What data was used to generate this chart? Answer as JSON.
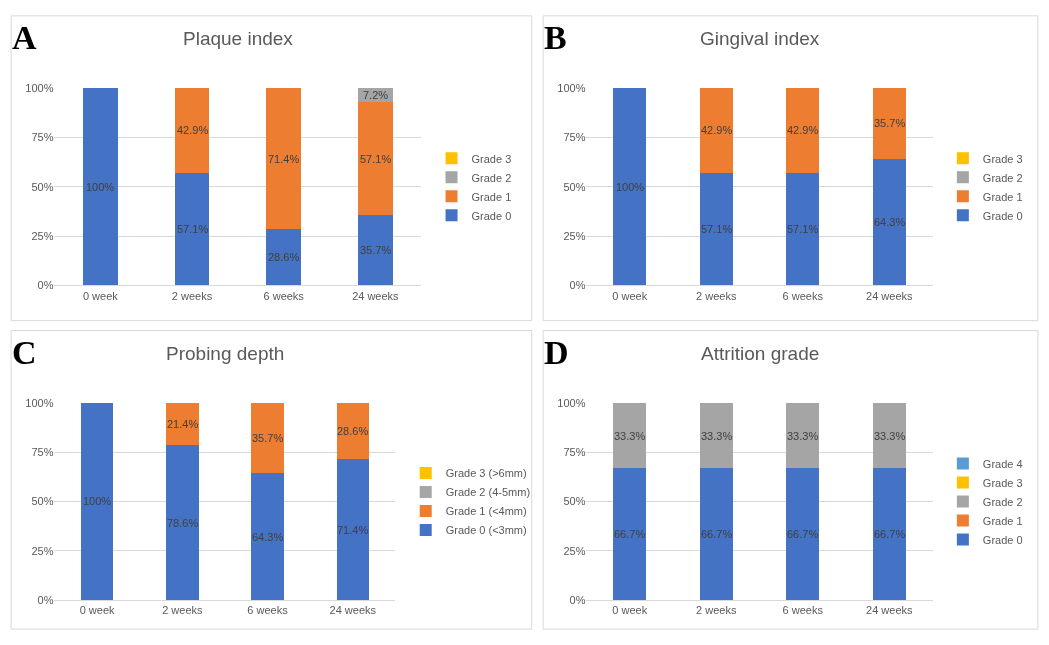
{
  "chart_data": [
    {
      "type": "bar",
      "title": "Plaque index",
      "annotations": [
        "A"
      ],
      "stacked": true,
      "categories": [
        "0 week",
        "2 weeks",
        "6 weeks",
        "24 weeks"
      ],
      "ylim": [
        0,
        100
      ],
      "yticks": [
        {
          "value": 0,
          "label": "0%"
        },
        {
          "value": 25,
          "label": "25%"
        },
        {
          "value": 50,
          "label": "50%"
        },
        {
          "value": 75,
          "label": "75%"
        },
        {
          "value": 100,
          "label": "100%"
        }
      ],
      "grid": "y",
      "legend": "right",
      "series": [
        {
          "name": "Grade 0",
          "color": "#4472c4",
          "values": [
            100,
            57.1,
            28.6,
            35.7
          ],
          "value_labels": [
            "100%",
            "57.1%",
            "28.6%",
            "35.7%"
          ]
        },
        {
          "name": "Grade 1",
          "color": "#ed7d31",
          "values": [
            0,
            42.9,
            71.4,
            57.1
          ],
          "value_labels": [
            null,
            "42.9%",
            "71.4%",
            "57.1%"
          ]
        },
        {
          "name": "Grade 2",
          "color": "#a5a5a5",
          "values": [
            0,
            0,
            0,
            7.2
          ],
          "value_labels": [
            null,
            null,
            null,
            "7.2%"
          ]
        },
        {
          "name": "Grade 3",
          "color": "#ffc000",
          "values": [
            0,
            0,
            0,
            0
          ],
          "value_labels": [
            null,
            null,
            null,
            null
          ]
        }
      ]
    },
    {
      "type": "bar",
      "title": "Gingival index",
      "annotations": [
        "B"
      ],
      "stacked": true,
      "categories": [
        "0 week",
        "2 weeks",
        "6 weeks",
        "24 weeks"
      ],
      "ylim": [
        0,
        100
      ],
      "yticks": [
        {
          "value": 0,
          "label": "0%"
        },
        {
          "value": 25,
          "label": "25%"
        },
        {
          "value": 50,
          "label": "50%"
        },
        {
          "value": 75,
          "label": "75%"
        },
        {
          "value": 100,
          "label": "100%"
        }
      ],
      "grid": "y",
      "legend": "right",
      "series": [
        {
          "name": "Grade 0",
          "color": "#4472c4",
          "values": [
            100,
            57.1,
            57.1,
            64.3
          ],
          "value_labels": [
            "100%",
            "57.1%",
            "57.1%",
            "64.3%"
          ]
        },
        {
          "name": "Grade 1",
          "color": "#ed7d31",
          "values": [
            0,
            42.9,
            42.9,
            35.7
          ],
          "value_labels": [
            null,
            "42.9%",
            "42.9%",
            "35.7%"
          ]
        },
        {
          "name": "Grade 2",
          "color": "#a5a5a5",
          "values": [
            0,
            0,
            0,
            0
          ],
          "value_labels": [
            null,
            null,
            null,
            null
          ]
        },
        {
          "name": "Grade 3",
          "color": "#ffc000",
          "values": [
            0,
            0,
            0,
            0
          ],
          "value_labels": [
            null,
            null,
            null,
            null
          ]
        }
      ]
    },
    {
      "type": "bar",
      "title": "Probing depth",
      "annotations": [
        "C"
      ],
      "stacked": true,
      "categories": [
        "0 week",
        "2 weeks",
        "6 weeks",
        "24 weeks"
      ],
      "ylim": [
        0,
        100
      ],
      "yticks": [
        {
          "value": 0,
          "label": "0%"
        },
        {
          "value": 25,
          "label": "25%"
        },
        {
          "value": 50,
          "label": "50%"
        },
        {
          "value": 75,
          "label": "75%"
        },
        {
          "value": 100,
          "label": "100%"
        }
      ],
      "grid": "y",
      "legend": "right",
      "series": [
        {
          "name": "Grade 0 (<3mm)",
          "color": "#4472c4",
          "values": [
            100,
            78.6,
            64.3,
            71.4
          ],
          "value_labels": [
            "100%",
            "78.6%",
            "64.3%",
            "71.4%"
          ]
        },
        {
          "name": "Grade 1 (<4mm)",
          "color": "#ed7d31",
          "values": [
            0,
            21.4,
            35.7,
            28.6
          ],
          "value_labels": [
            null,
            "21.4%",
            "35.7%",
            "28.6%"
          ]
        },
        {
          "name": "Grade 2 (4-5mm)",
          "color": "#a5a5a5",
          "values": [
            0,
            0,
            0,
            0
          ],
          "value_labels": [
            null,
            null,
            null,
            null
          ]
        },
        {
          "name": "Grade 3 (>6mm)",
          "color": "#ffc000",
          "values": [
            0,
            0,
            0,
            0
          ],
          "value_labels": [
            null,
            null,
            null,
            null
          ]
        }
      ]
    },
    {
      "type": "bar",
      "title": "Attrition grade",
      "annotations": [
        "D"
      ],
      "stacked": true,
      "categories": [
        "0 week",
        "2 weeks",
        "6 weeks",
        "24 weeks"
      ],
      "ylim": [
        0,
        100
      ],
      "yticks": [
        {
          "value": 0,
          "label": "0%"
        },
        {
          "value": 25,
          "label": "25%"
        },
        {
          "value": 50,
          "label": "50%"
        },
        {
          "value": 75,
          "label": "75%"
        },
        {
          "value": 100,
          "label": "100%"
        }
      ],
      "grid": "y",
      "legend": "right",
      "series": [
        {
          "name": "Grade 0",
          "color": "#4472c4",
          "values": [
            66.7,
            66.7,
            66.7,
            66.7
          ],
          "value_labels": [
            "66.7%",
            "66.7%",
            "66.7%",
            "66.7%"
          ]
        },
        {
          "name": "Grade 1",
          "color": "#ed7d31",
          "values": [
            0,
            0,
            0,
            0
          ],
          "value_labels": [
            null,
            null,
            null,
            null
          ]
        },
        {
          "name": "Grade 2",
          "color": "#a5a5a5",
          "values": [
            33.3,
            33.3,
            33.3,
            33.3
          ],
          "value_labels": [
            "33.3%",
            "33.3%",
            "33.3%",
            "33.3%"
          ]
        },
        {
          "name": "Grade 3",
          "color": "#ffc000",
          "values": [
            0,
            0,
            0,
            0
          ],
          "value_labels": [
            null,
            null,
            null,
            null
          ]
        },
        {
          "name": "Grade 4",
          "color": "#5b9bd5",
          "values": [
            0,
            0,
            0,
            0
          ],
          "value_labels": [
            null,
            null,
            null,
            null
          ]
        }
      ]
    }
  ]
}
